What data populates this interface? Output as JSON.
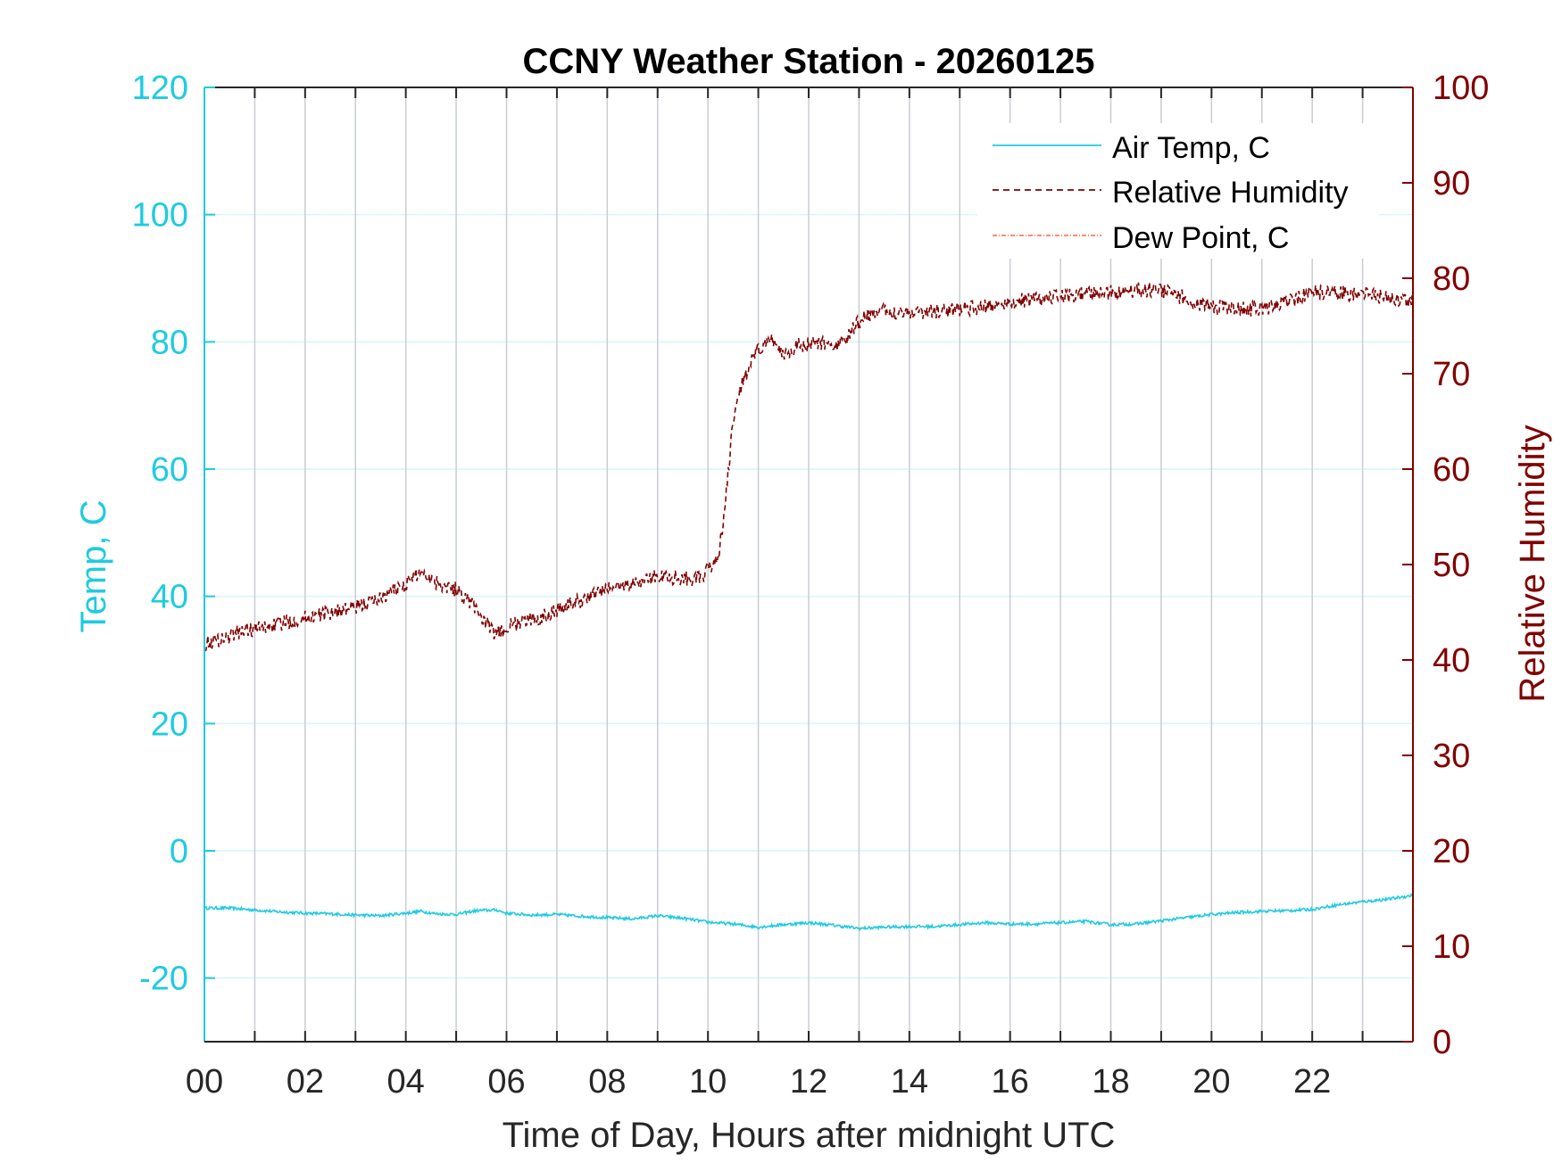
{
  "colors": {
    "left_axis": "#1ECBE1",
    "right_axis": "#800000",
    "air_temp": "#1ECBE1",
    "humidity": "#800000",
    "dew_point": "#FF6347",
    "grid_vertical": "#C8CDD3",
    "grid_horizontal": "#D9F4F8",
    "axis_black": "#262626"
  },
  "chart_data": {
    "type": "line",
    "title": "CCNY Weather Station - 20260125",
    "xlabel": "Time of Day, Hours after midnight UTC",
    "ylabel_left": "Temp, C",
    "ylabel_right": "Relative Humidity",
    "xlim": [
      0,
      24
    ],
    "ylim_left": [
      -30,
      120
    ],
    "ylim_right": [
      0,
      100
    ],
    "x_ticks": [
      0,
      2,
      4,
      6,
      8,
      10,
      12,
      14,
      16,
      18,
      20,
      22
    ],
    "x_tick_labels": [
      "00",
      "02",
      "04",
      "06",
      "08",
      "10",
      "12",
      "14",
      "16",
      "18",
      "20",
      "22"
    ],
    "y_left_ticks": [
      -20,
      0,
      20,
      40,
      60,
      80,
      100,
      120
    ],
    "y_left_tick_labels": [
      "-20",
      "0",
      "20",
      "40",
      "60",
      "80",
      "100",
      "120"
    ],
    "y_right_ticks": [
      0,
      10,
      20,
      30,
      40,
      50,
      60,
      70,
      80,
      90,
      100
    ],
    "y_right_tick_labels": [
      "0",
      "10",
      "20",
      "30",
      "40",
      "50",
      "60",
      "70",
      "80",
      "90",
      "100"
    ],
    "grid": true,
    "legend_position": "top-right",
    "series": [
      {
        "name": "Air Temp, C",
        "axis": "left",
        "style": "solid",
        "x": [
          0,
          0.5,
          1,
          1.5,
          2,
          2.5,
          3,
          3.5,
          4,
          4.3,
          4.6,
          5,
          5.4,
          5.8,
          6,
          6.5,
          7,
          7.5,
          8,
          8.5,
          9,
          9.5,
          10,
          10.5,
          11,
          11.5,
          12,
          12.5,
          13,
          13.5,
          14,
          14.5,
          15,
          15.5,
          16,
          16.5,
          17,
          17.5,
          18,
          18.5,
          19,
          19.5,
          20,
          20.5,
          21,
          21.5,
          22,
          22.5,
          23,
          23.5,
          24
        ],
        "y": [
          -9.0,
          -9.0,
          -9.3,
          -9.6,
          -9.8,
          -9.9,
          -10.1,
          -10.2,
          -9.8,
          -9.5,
          -9.9,
          -10.0,
          -9.4,
          -9.3,
          -9.8,
          -10.1,
          -10.0,
          -10.3,
          -10.5,
          -10.7,
          -10.2,
          -10.6,
          -11.2,
          -11.5,
          -12.0,
          -11.6,
          -11.3,
          -11.7,
          -12.2,
          -12.0,
          -11.9,
          -11.9,
          -11.6,
          -11.3,
          -11.5,
          -11.5,
          -11.3,
          -11.1,
          -11.6,
          -11.5,
          -11.0,
          -10.5,
          -10.0,
          -9.7,
          -9.5,
          -9.4,
          -9.2,
          -8.5,
          -8.0,
          -7.6,
          -7.0
        ]
      },
      {
        "name": "Relative Humidity",
        "axis": "right",
        "style": "dashed",
        "x": [
          0,
          0.2,
          0.5,
          0.8,
          1,
          1.5,
          2,
          2.5,
          3,
          3.5,
          4,
          4.3,
          4.6,
          5,
          5.3,
          5.6,
          5.8,
          6,
          6.3,
          6.7,
          7,
          7.5,
          8,
          8.5,
          9,
          9.5,
          9.9,
          10.0,
          10.2,
          10.3,
          10.4,
          10.5,
          10.7,
          11,
          11.3,
          11.5,
          11.8,
          12,
          12.3,
          12.6,
          12.8,
          13,
          13.3,
          13.6,
          14,
          14.5,
          15,
          15.5,
          16,
          16.5,
          17,
          17.5,
          18,
          18.5,
          19,
          19.5,
          20,
          20.5,
          21,
          21.5,
          22,
          22.5,
          23,
          23.5,
          24
        ],
        "y": [
          41.7,
          42.0,
          42.5,
          43.2,
          43.2,
          43.8,
          44.4,
          45.0,
          45.5,
          46.5,
          48.0,
          49.3,
          48.2,
          47.4,
          46.0,
          43.8,
          42.6,
          43.4,
          44.0,
          44.5,
          45.3,
          46.3,
          47.5,
          48.0,
          48.8,
          48.6,
          48.5,
          49.5,
          50.8,
          54.0,
          59.5,
          65.0,
          69.5,
          72.5,
          73.5,
          72.0,
          73.0,
          73.0,
          73.2,
          73.0,
          74.0,
          75.5,
          76.5,
          76.5,
          76.5,
          76.5,
          76.8,
          77.0,
          77.5,
          77.8,
          78.0,
          78.3,
          78.5,
          78.8,
          78.8,
          77.8,
          77.0,
          76.8,
          76.8,
          77.5,
          78.5,
          78.5,
          78.3,
          78.0,
          77.5
        ]
      },
      {
        "name": "Dew Point, C",
        "axis": "left",
        "style": "dash-dot",
        "x": [],
        "y": []
      }
    ]
  }
}
